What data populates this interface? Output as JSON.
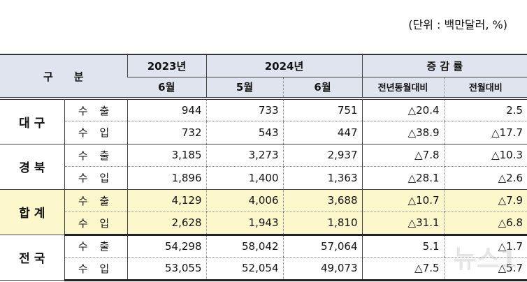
{
  "unit": "(단위 : 백만달러, %)",
  "header": {
    "category": "구　　분",
    "y2023": "2023년",
    "y2024": "2024년",
    "change": "증 감 률",
    "m2023_6": "6월",
    "m2024_5": "5월",
    "m2024_6": "6월",
    "yoy": "전년동월대비",
    "mom": "전월대비"
  },
  "regions": [
    {
      "name": "대 구",
      "rows": [
        {
          "type": "수 출",
          "v": [
            "944",
            "733",
            "751",
            "△20.4",
            "2.5"
          ]
        },
        {
          "type": "수 입",
          "v": [
            "732",
            "543",
            "447",
            "△38.9",
            "△17.7"
          ]
        }
      ]
    },
    {
      "name": "경 북",
      "rows": [
        {
          "type": "수 출",
          "v": [
            "3,185",
            "3,273",
            "2,937",
            "△7.8",
            "△10.3"
          ]
        },
        {
          "type": "수 입",
          "v": [
            "1,896",
            "1,400",
            "1,363",
            "△28.1",
            "△2.6"
          ]
        }
      ]
    },
    {
      "name": "합 계",
      "highlight": true,
      "rows": [
        {
          "type": "수 출",
          "v": [
            "4,129",
            "4,006",
            "3,688",
            "△10.7",
            "△7.9"
          ]
        },
        {
          "type": "수 입",
          "v": [
            "2,628",
            "1,943",
            "1,810",
            "△31.1",
            "△6.8"
          ]
        }
      ]
    },
    {
      "name": "전 국",
      "rows": [
        {
          "type": "수 출",
          "v": [
            "54,298",
            "58,042",
            "57,064",
            "5.1",
            "△1.7"
          ]
        },
        {
          "type": "수 입",
          "v": [
            "53,055",
            "52,054",
            "49,073",
            "△7.5",
            "△5.7"
          ]
        }
      ]
    }
  ],
  "watermark": "뉴스1",
  "colors": {
    "header_bg": "#dfe4ee",
    "highlight_bg": "#fdf8cb"
  }
}
